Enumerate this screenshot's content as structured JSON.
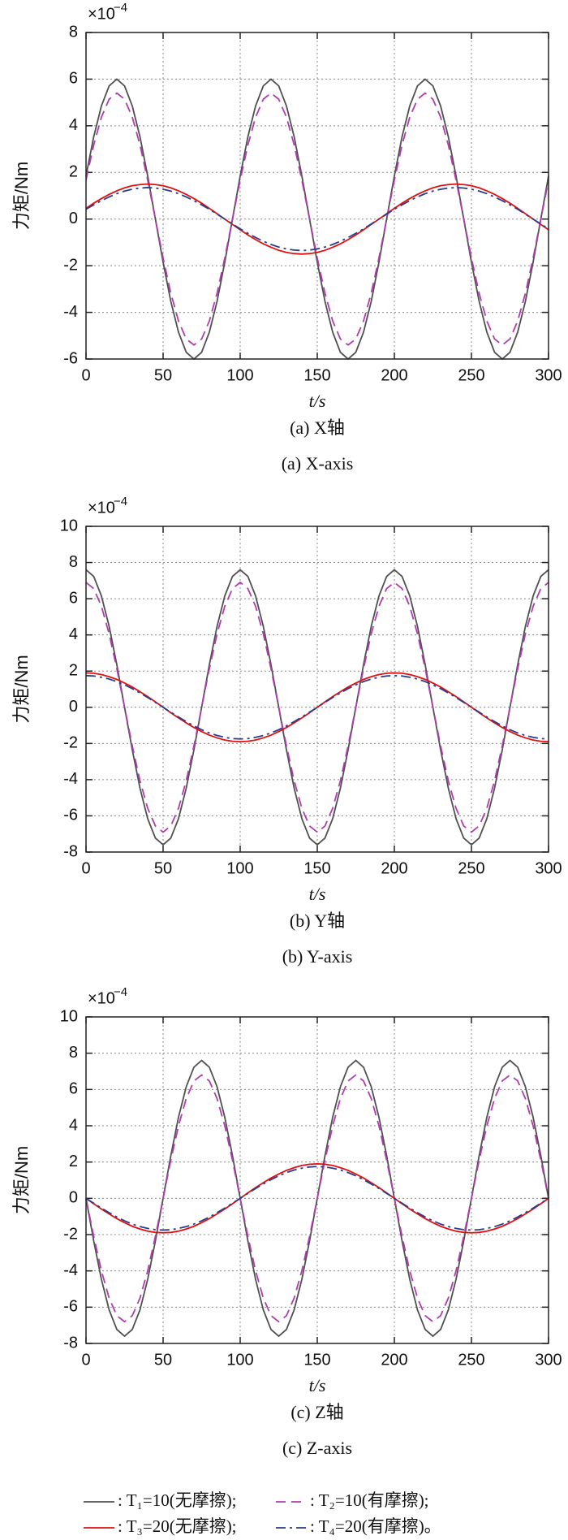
{
  "chart_data": [
    {
      "type": "line",
      "y_label": "力矩/Nm",
      "x_label": "t/s",
      "y_scale": "×10",
      "y_scale_exp": "−4",
      "caption": "(a) X轴",
      "caption_en": "(a) X-axis",
      "xlim": [
        0,
        300
      ],
      "xticks": [
        0,
        50,
        100,
        150,
        200,
        250,
        300
      ],
      "ylim": [
        -6,
        8
      ],
      "yticks": [
        -6,
        -4,
        -2,
        0,
        2,
        4,
        6,
        8
      ],
      "grid": true,
      "x": [
        0,
        5,
        10,
        15,
        20,
        25,
        30,
        35,
        40,
        45,
        50,
        55,
        60,
        65,
        70,
        75,
        80,
        85,
        90,
        95,
        100,
        105,
        110,
        115,
        120,
        125,
        130,
        135,
        140,
        145,
        150,
        155,
        160,
        165,
        170,
        175,
        180,
        185,
        190,
        195,
        200,
        205,
        210,
        215,
        220,
        225,
        230,
        235,
        240,
        245,
        250,
        255,
        260,
        265,
        270,
        275,
        280,
        285,
        290,
        295,
        300
      ],
      "series": [
        {
          "name": ": T₁=10(无摩擦);",
          "color": "#505050",
          "style": "solid",
          "values": [
            1.85,
            3.53,
            4.85,
            5.71,
            6,
            5.71,
            4.85,
            3.53,
            1.85,
            0,
            -1.85,
            -3.53,
            -4.85,
            -5.71,
            -6,
            -5.71,
            -4.85,
            -3.53,
            -1.85,
            0,
            1.85,
            3.53,
            4.85,
            5.71,
            6,
            5.71,
            4.85,
            3.53,
            1.85,
            0,
            -1.85,
            -3.53,
            -4.85,
            -5.71,
            -6,
            -5.71,
            -4.85,
            -3.53,
            -1.85,
            0,
            1.85,
            3.53,
            4.85,
            5.71,
            6,
            5.71,
            4.85,
            3.53,
            1.85,
            0,
            -1.85,
            -3.53,
            -4.85,
            -5.71,
            -6,
            -5.71,
            -4.85,
            -3.53,
            -1.85,
            0,
            1.85
          ]
        },
        {
          "name": ": T₂=10(有摩擦);",
          "color": "#b03cb0",
          "style": "dashed",
          "values": [
            1.67,
            3.18,
            4.37,
            5.14,
            5.4,
            5.14,
            4.37,
            3.18,
            1.67,
            0,
            -1.67,
            -3.18,
            -4.37,
            -5.14,
            -5.4,
            -5.14,
            -4.37,
            -3.18,
            -1.67,
            0,
            1.67,
            3.18,
            4.37,
            5.14,
            5.4,
            5.14,
            4.37,
            3.18,
            1.67,
            0,
            -1.67,
            -3.18,
            -4.37,
            -5.14,
            -5.4,
            -5.14,
            -4.37,
            -3.18,
            -1.67,
            0,
            1.67,
            3.18,
            4.37,
            5.14,
            5.4,
            5.14,
            4.37,
            3.18,
            1.67,
            0,
            -1.67,
            -3.18,
            -4.37,
            -5.14,
            -5.4,
            -5.14,
            -4.37,
            -3.18,
            -1.67,
            0,
            1.67
          ]
        },
        {
          "name": ": T₃=20(无摩擦);",
          "color": "#e01010",
          "style": "solid",
          "values": [
            0.46,
            0.68,
            0.88,
            1.06,
            1.21,
            1.34,
            1.43,
            1.48,
            1.5,
            1.48,
            1.43,
            1.34,
            1.21,
            1.06,
            0.88,
            0.68,
            0.46,
            0.23,
            0,
            -0.23,
            -0.46,
            -0.68,
            -0.88,
            -1.06,
            -1.21,
            -1.34,
            -1.43,
            -1.48,
            -1.5,
            -1.48,
            -1.43,
            -1.34,
            -1.21,
            -1.06,
            -0.88,
            -0.68,
            -0.46,
            -0.23,
            0,
            0.23,
            0.46,
            0.68,
            0.88,
            1.06,
            1.21,
            1.34,
            1.43,
            1.48,
            1.5,
            1.48,
            1.43,
            1.34,
            1.21,
            1.06,
            0.88,
            0.68,
            0.46,
            0.23,
            0,
            -0.23,
            -0.46
          ]
        },
        {
          "name": ": T₄=20(有摩擦)。",
          "color": "#2a3c8c",
          "style": "dashdot",
          "values": [
            0.42,
            0.61,
            0.79,
            0.95,
            1.09,
            1.2,
            1.28,
            1.33,
            1.35,
            1.33,
            1.28,
            1.2,
            1.09,
            0.95,
            0.79,
            0.61,
            0.42,
            0.21,
            0,
            -0.21,
            -0.42,
            -0.61,
            -0.79,
            -0.95,
            -1.09,
            -1.2,
            -1.28,
            -1.33,
            -1.35,
            -1.33,
            -1.28,
            -1.2,
            -1.09,
            -0.95,
            -0.79,
            -0.61,
            -0.42,
            -0.21,
            0,
            0.21,
            0.42,
            0.61,
            0.79,
            0.95,
            1.09,
            1.2,
            1.28,
            1.33,
            1.35,
            1.33,
            1.28,
            1.2,
            1.09,
            0.95,
            0.79,
            0.61,
            0.42,
            0.21,
            0,
            -0.21,
            -0.42
          ]
        }
      ]
    },
    {
      "type": "line",
      "y_label": "力矩/Nm",
      "x_label": "t/s",
      "y_scale": "×10",
      "y_scale_exp": "−4",
      "caption": "(b) Y轴",
      "caption_en": "(b) Y-axis",
      "xlim": [
        0,
        300
      ],
      "xticks": [
        0,
        50,
        100,
        150,
        200,
        250,
        300
      ],
      "ylim": [
        -8,
        10
      ],
      "yticks": [
        -8,
        -6,
        -4,
        -2,
        0,
        2,
        4,
        6,
        8,
        10
      ],
      "grid": true,
      "x": [
        0,
        5,
        10,
        15,
        20,
        25,
        30,
        35,
        40,
        45,
        50,
        55,
        60,
        65,
        70,
        75,
        80,
        85,
        90,
        95,
        100,
        105,
        110,
        115,
        120,
        125,
        130,
        135,
        140,
        145,
        150,
        155,
        160,
        165,
        170,
        175,
        180,
        185,
        190,
        195,
        200,
        205,
        210,
        215,
        220,
        225,
        230,
        235,
        240,
        245,
        250,
        255,
        260,
        265,
        270,
        275,
        280,
        285,
        290,
        295,
        300
      ],
      "series": [
        {
          "name": ": T₁=10(无摩擦);",
          "color": "#505050",
          "style": "solid",
          "values": [
            7.6,
            7.23,
            6.15,
            4.47,
            2.35,
            0,
            -2.35,
            -4.47,
            -6.15,
            -7.23,
            -7.6,
            -7.23,
            -6.15,
            -4.47,
            -2.35,
            0,
            2.35,
            4.47,
            6.15,
            7.23,
            7.6,
            7.23,
            6.15,
            4.47,
            2.35,
            0,
            -2.35,
            -4.47,
            -6.15,
            -7.23,
            -7.6,
            -7.23,
            -6.15,
            -4.47,
            -2.35,
            0,
            2.35,
            4.47,
            6.15,
            7.23,
            7.6,
            7.23,
            6.15,
            4.47,
            2.35,
            0,
            -2.35,
            -4.47,
            -6.15,
            -7.23,
            -7.6,
            -7.23,
            -6.15,
            -4.47,
            -2.35,
            0,
            2.35,
            4.47,
            6.15,
            7.23,
            7.6
          ]
        },
        {
          "name": ": T₂=10(有摩擦);",
          "color": "#b03cb0",
          "style": "dashed",
          "values": [
            6.9,
            6.56,
            5.58,
            4.06,
            2.13,
            0,
            -2.13,
            -4.06,
            -5.58,
            -6.56,
            -6.9,
            -6.56,
            -5.58,
            -4.06,
            -2.13,
            0,
            2.13,
            4.06,
            5.58,
            6.56,
            6.9,
            6.56,
            5.58,
            4.06,
            2.13,
            0,
            -2.13,
            -4.06,
            -5.58,
            -6.56,
            -6.9,
            -6.56,
            -5.58,
            -4.06,
            -2.13,
            0,
            2.13,
            4.06,
            5.58,
            6.56,
            6.9,
            6.56,
            5.58,
            4.06,
            2.13,
            0,
            -2.13,
            -4.06,
            -5.58,
            -6.56,
            -6.9,
            -6.56,
            -5.58,
            -4.06,
            -2.13,
            0,
            2.13,
            4.06,
            5.58,
            6.56,
            6.9
          ]
        },
        {
          "name": ": T₃=20(无摩擦);",
          "color": "#e01010",
          "style": "solid",
          "values": [
            1.9,
            1.88,
            1.81,
            1.69,
            1.54,
            1.34,
            1.12,
            0.86,
            0.59,
            0.3,
            0,
            -0.3,
            -0.59,
            -0.86,
            -1.12,
            -1.34,
            -1.54,
            -1.69,
            -1.81,
            -1.88,
            -1.9,
            -1.88,
            -1.81,
            -1.69,
            -1.54,
            -1.34,
            -1.12,
            -0.86,
            -0.59,
            -0.3,
            0,
            0.3,
            0.59,
            0.86,
            1.12,
            1.34,
            1.54,
            1.69,
            1.81,
            1.88,
            1.9,
            1.88,
            1.81,
            1.69,
            1.54,
            1.34,
            1.12,
            0.86,
            0.59,
            0.3,
            0,
            -0.3,
            -0.59,
            -0.86,
            -1.12,
            -1.34,
            -1.54,
            -1.69,
            -1.81,
            -1.88,
            -1.9
          ]
        },
        {
          "name": ": T₄=20(有摩擦)。",
          "color": "#2a3c8c",
          "style": "dashdot",
          "values": [
            1.75,
            1.73,
            1.66,
            1.56,
            1.42,
            1.24,
            1.03,
            0.79,
            0.54,
            0.27,
            0,
            -0.27,
            -0.54,
            -0.79,
            -1.03,
            -1.24,
            -1.42,
            -1.56,
            -1.66,
            -1.73,
            -1.75,
            -1.73,
            -1.66,
            -1.56,
            -1.42,
            -1.24,
            -1.03,
            -0.79,
            -0.54,
            -0.27,
            0,
            0.27,
            0.54,
            0.79,
            1.03,
            1.24,
            1.42,
            1.56,
            1.66,
            1.73,
            1.75,
            1.73,
            1.66,
            1.56,
            1.42,
            1.24,
            1.03,
            0.79,
            0.54,
            0.27,
            0,
            -0.27,
            -0.54,
            -0.79,
            -1.03,
            -1.24,
            -1.42,
            -1.56,
            -1.66,
            -1.73,
            -1.75
          ]
        }
      ]
    },
    {
      "type": "line",
      "y_label": "力矩/Nm",
      "x_label": "t/s",
      "y_scale": "×10",
      "y_scale_exp": "−4",
      "caption": "(c) Z轴",
      "caption_en": "(c) Z-axis",
      "xlim": [
        0,
        300
      ],
      "xticks": [
        0,
        50,
        100,
        150,
        200,
        250,
        300
      ],
      "ylim": [
        -8,
        10
      ],
      "yticks": [
        -8,
        -6,
        -4,
        -2,
        0,
        2,
        4,
        6,
        8,
        10
      ],
      "grid": true,
      "x": [
        0,
        5,
        10,
        15,
        20,
        25,
        30,
        35,
        40,
        45,
        50,
        55,
        60,
        65,
        70,
        75,
        80,
        85,
        90,
        95,
        100,
        105,
        110,
        115,
        120,
        125,
        130,
        135,
        140,
        145,
        150,
        155,
        160,
        165,
        170,
        175,
        180,
        185,
        190,
        195,
        200,
        205,
        210,
        215,
        220,
        225,
        230,
        235,
        240,
        245,
        250,
        255,
        260,
        265,
        270,
        275,
        280,
        285,
        290,
        295,
        300
      ],
      "series": [
        {
          "name": ": T₁=10(无摩擦);",
          "color": "#505050",
          "style": "solid",
          "values": [
            0,
            -2.35,
            -4.47,
            -6.15,
            -7.23,
            -7.6,
            -7.23,
            -6.15,
            -4.47,
            -2.35,
            0,
            2.35,
            4.47,
            6.15,
            7.23,
            7.6,
            7.23,
            6.15,
            4.47,
            2.35,
            0,
            -2.35,
            -4.47,
            -6.15,
            -7.23,
            -7.6,
            -7.23,
            -6.15,
            -4.47,
            -2.35,
            0,
            2.35,
            4.47,
            6.15,
            7.23,
            7.6,
            7.23,
            6.15,
            4.47,
            2.35,
            0,
            -2.35,
            -4.47,
            -6.15,
            -7.23,
            -7.6,
            -7.23,
            -6.15,
            -4.47,
            -2.35,
            0,
            2.35,
            4.47,
            6.15,
            7.23,
            7.6,
            7.23,
            6.15,
            4.47,
            2.35,
            0
          ]
        },
        {
          "name": ": T₂=10(有摩擦);",
          "color": "#b03cb0",
          "style": "dashed",
          "values": [
            0,
            -2.1,
            -4,
            -5.5,
            -6.47,
            -6.8,
            -6.47,
            -5.5,
            -4,
            -2.1,
            0,
            2.1,
            4,
            5.5,
            6.47,
            6.8,
            6.47,
            5.5,
            4,
            2.1,
            0,
            -2.1,
            -4,
            -5.5,
            -6.47,
            -6.8,
            -6.47,
            -5.5,
            -4,
            -2.1,
            0,
            2.1,
            4,
            5.5,
            6.47,
            6.8,
            6.47,
            5.5,
            4,
            2.1,
            0,
            -2.1,
            -4,
            -5.5,
            -6.47,
            -6.8,
            -6.47,
            -5.5,
            -4,
            -2.1,
            0,
            2.1,
            4,
            5.5,
            6.47,
            6.8,
            6.47,
            5.5,
            4,
            2.1,
            0
          ]
        },
        {
          "name": ": T₃=20(无摩擦);",
          "color": "#e01010",
          "style": "solid",
          "values": [
            0,
            -0.3,
            -0.59,
            -0.86,
            -1.12,
            -1.34,
            -1.54,
            -1.69,
            -1.81,
            -1.88,
            -1.9,
            -1.88,
            -1.81,
            -1.69,
            -1.54,
            -1.34,
            -1.12,
            -0.86,
            -0.59,
            -0.3,
            0,
            0.3,
            0.59,
            0.86,
            1.12,
            1.34,
            1.54,
            1.69,
            1.81,
            1.88,
            1.9,
            1.88,
            1.81,
            1.69,
            1.54,
            1.34,
            1.12,
            0.86,
            0.59,
            0.3,
            0,
            -0.3,
            -0.59,
            -0.86,
            -1.12,
            -1.34,
            -1.54,
            -1.69,
            -1.81,
            -1.88,
            -1.9,
            -1.88,
            -1.81,
            -1.69,
            -1.54,
            -1.34,
            -1.12,
            -0.86,
            -0.59,
            -0.3,
            0
          ]
        },
        {
          "name": ": T₄=20(有摩擦)。",
          "color": "#2a3c8c",
          "style": "dashdot",
          "values": [
            0,
            -0.27,
            -0.54,
            -0.79,
            -1.03,
            -1.24,
            -1.42,
            -1.56,
            -1.66,
            -1.73,
            -1.75,
            -1.73,
            -1.66,
            -1.56,
            -1.42,
            -1.24,
            -1.03,
            -0.79,
            -0.54,
            -0.27,
            0,
            0.27,
            0.54,
            0.79,
            1.03,
            1.24,
            1.42,
            1.56,
            1.66,
            1.73,
            1.75,
            1.73,
            1.66,
            1.56,
            1.42,
            1.24,
            1.03,
            0.79,
            0.54,
            0.27,
            0,
            -0.27,
            -0.54,
            -0.79,
            -1.03,
            -1.24,
            -1.42,
            -1.56,
            -1.66,
            -1.73,
            -1.75,
            -1.73,
            -1.66,
            -1.56,
            -1.42,
            -1.24,
            -1.03,
            -0.79,
            -0.54,
            -0.27,
            0
          ]
        }
      ]
    }
  ]
}
